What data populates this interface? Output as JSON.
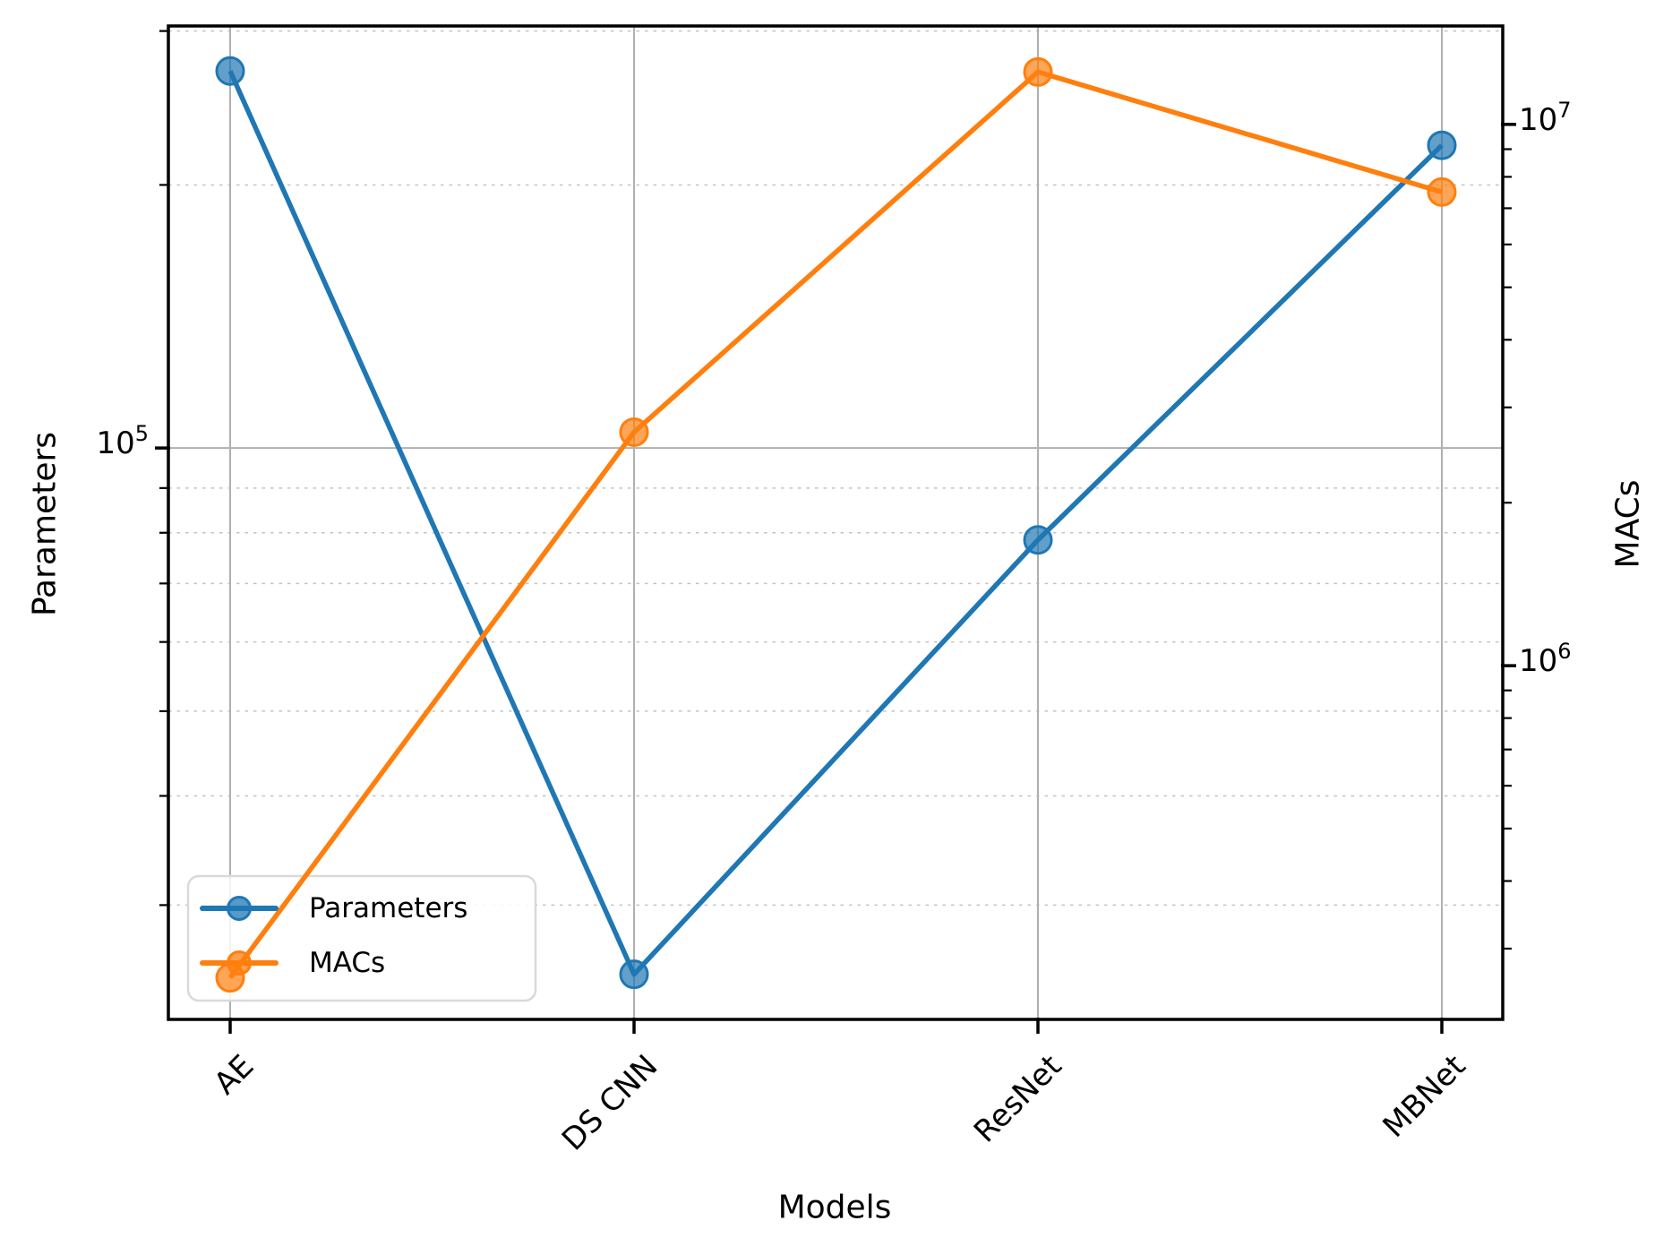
{
  "figure": {
    "xlabel": "Models",
    "left_axis": {
      "label": "Parameters",
      "tick": {
        "base": "10",
        "exp": "5"
      }
    },
    "right_axis": {
      "label": "MACs",
      "tick_top": {
        "base": "10",
        "exp": "7"
      },
      "tick_bottom": {
        "base": "10",
        "exp": "6"
      }
    }
  },
  "chart_data": {
    "type": "line",
    "categories": [
      "AE",
      "DS CNN",
      "ResNet",
      "MBNet"
    ],
    "series": [
      {
        "name": "Parameters",
        "axis": "left",
        "color": "#1f77b4",
        "marker": "circle",
        "values": [
          270000,
          25000,
          78500,
          222000
        ]
      },
      {
        "name": "MACs",
        "axis": "right",
        "color": "#ff7f0e",
        "marker": "circle",
        "values": [
          265000,
          2700000,
          12500000,
          7500000
        ]
      }
    ],
    "title": "",
    "xlabel": "Models",
    "ylabel_left": "Parameters",
    "ylabel_right": "MACs",
    "yscale": "log",
    "ylim_left": [
      22200,
      304000
    ],
    "ylim_right": [
      222000,
      15200000
    ],
    "grid": {
      "vertical_major": true,
      "horizontal_major": true,
      "horizontal_minor_dashed": true
    },
    "legend_position": "lower left",
    "legend_entries": [
      "Parameters",
      "MACs"
    ]
  }
}
